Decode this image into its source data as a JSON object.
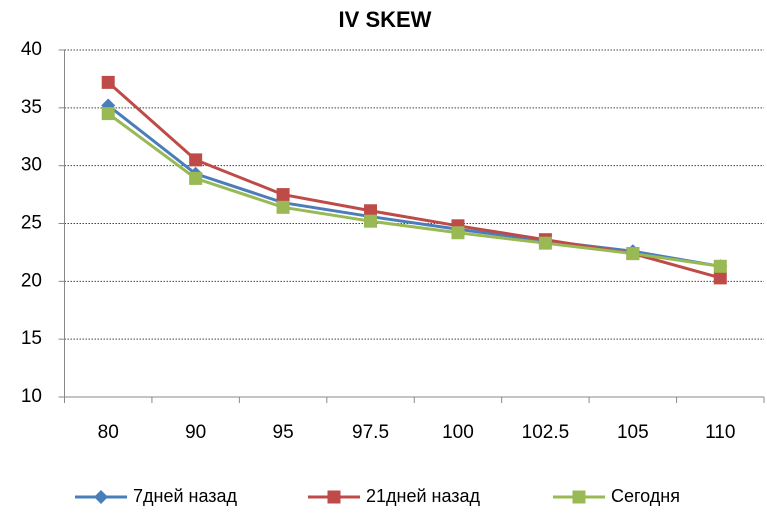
{
  "chart_data": {
    "type": "line",
    "title": "IV SKEW",
    "categories": [
      "80",
      "90",
      "95",
      "97.5",
      "100",
      "102.5",
      "105",
      "110"
    ],
    "series": [
      {
        "name": "7дней назад",
        "color": "#4a7ebb",
        "marker": "diamond",
        "values": [
          35.2,
          29.3,
          26.8,
          25.6,
          24.5,
          23.5,
          22.6,
          21.3
        ]
      },
      {
        "name": "21дней назад",
        "color": "#be4b48",
        "marker": "square",
        "values": [
          37.2,
          30.5,
          27.5,
          26.1,
          24.8,
          23.6,
          22.4,
          20.3
        ]
      },
      {
        "name": "Сегодня",
        "color": "#98b954",
        "marker": "square",
        "values": [
          34.5,
          28.9,
          26.4,
          25.2,
          24.2,
          23.3,
          22.4,
          21.3
        ]
      }
    ],
    "ylim": [
      10,
      40
    ],
    "yticks": [
      10,
      15,
      20,
      25,
      30,
      35,
      40
    ],
    "grid": true,
    "legend": "bottom"
  }
}
